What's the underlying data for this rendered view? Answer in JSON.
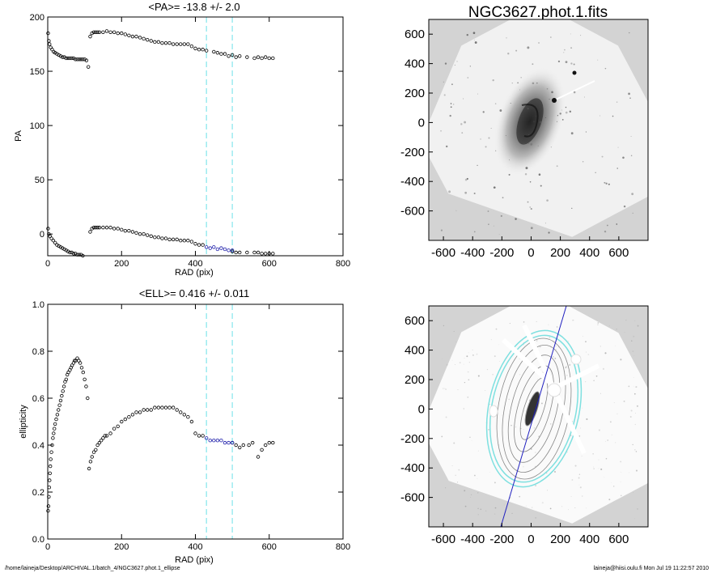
{
  "footer": {
    "left": "/home/laineja/Desktop/ARCHIVAL.1/batch_4/NGC3627.phot.1_ellipse",
    "right": "laineja@hiisi.oulu.fi  Mon Jul 19 11:22:57 2010"
  },
  "colors": {
    "points": "#000000",
    "fit_points": "#1a1aa8",
    "marker_lines": "#8ee8ee",
    "image_bg": "#d3d3d3",
    "contours": "#7ee0e0",
    "slit": "#2020c0"
  },
  "chart_data": [
    {
      "id": "pa",
      "type": "scatter",
      "title": "<PA>= -13.8 +/-   2.0",
      "xlabel": "RAD (pix)",
      "ylabel": "PA",
      "xlim": [
        0,
        800
      ],
      "ylim": [
        -20,
        200
      ],
      "xticks": [
        0,
        200,
        400,
        600,
        800
      ],
      "yticks": [
        0,
        50,
        100,
        150,
        200
      ],
      "vlines": [
        430,
        500
      ],
      "series": [
        {
          "values": [
            [
              1,
              185
            ],
            [
              3,
              178
            ],
            [
              5,
              175
            ],
            [
              8,
              172
            ],
            [
              12,
              170
            ],
            [
              16,
              168
            ],
            [
              20,
              167
            ],
            [
              25,
              166
            ],
            [
              30,
              165
            ],
            [
              35,
              164
            ],
            [
              40,
              163
            ],
            [
              45,
              163
            ],
            [
              50,
              162
            ],
            [
              55,
              162
            ],
            [
              60,
              162
            ],
            [
              65,
              162
            ],
            [
              70,
              162
            ],
            [
              75,
              161
            ],
            [
              80,
              161
            ],
            [
              85,
              161
            ],
            [
              90,
              161
            ],
            [
              95,
              161
            ],
            [
              100,
              161
            ],
            [
              105,
              160
            ],
            [
              110,
              154
            ],
            [
              115,
              182
            ],
            [
              120,
              185
            ],
            [
              125,
              186
            ],
            [
              130,
              186
            ],
            [
              135,
              186
            ],
            [
              140,
              186
            ],
            [
              150,
              186
            ],
            [
              160,
              187
            ],
            [
              170,
              186
            ],
            [
              180,
              186
            ],
            [
              190,
              185
            ],
            [
              200,
              185
            ],
            [
              210,
              184
            ],
            [
              220,
              183
            ],
            [
              230,
              182
            ],
            [
              240,
              182
            ],
            [
              250,
              181
            ],
            [
              260,
              180
            ],
            [
              270,
              179
            ],
            [
              280,
              178
            ],
            [
              290,
              177
            ],
            [
              300,
              177
            ],
            [
              310,
              176
            ],
            [
              320,
              176
            ],
            [
              330,
              176
            ],
            [
              340,
              175
            ],
            [
              350,
              175
            ],
            [
              360,
              175
            ],
            [
              370,
              175
            ],
            [
              380,
              175
            ],
            [
              390,
              173
            ],
            [
              400,
              171
            ],
            [
              410,
              170
            ],
            [
              420,
              170
            ],
            [
              430,
              169
            ],
            [
              450,
              168
            ],
            [
              460,
              167
            ],
            [
              470,
              166
            ],
            [
              480,
              166
            ],
            [
              490,
              164
            ],
            [
              500,
              165
            ],
            [
              510,
              163
            ],
            [
              520,
              164
            ],
            [
              540,
              163
            ],
            [
              560,
              162
            ],
            [
              570,
              163
            ],
            [
              580,
              162
            ],
            [
              590,
              163
            ],
            [
              600,
              162
            ],
            [
              610,
              162
            ],
            [
              1,
              5
            ],
            [
              3,
              0
            ],
            [
              6,
              -2
            ],
            [
              10,
              -4
            ],
            [
              15,
              -6
            ],
            [
              20,
              -8
            ],
            [
              25,
              -10
            ],
            [
              30,
              -11
            ],
            [
              35,
              -12
            ],
            [
              40,
              -13
            ],
            [
              45,
              -14
            ],
            [
              50,
              -15
            ],
            [
              55,
              -16
            ],
            [
              60,
              -17
            ],
            [
              65,
              -17
            ],
            [
              70,
              -18
            ],
            [
              75,
              -18
            ],
            [
              80,
              -19
            ],
            [
              85,
              -19
            ],
            [
              90,
              -19
            ],
            [
              95,
              -20
            ],
            [
              115,
              2
            ],
            [
              120,
              5
            ],
            [
              125,
              6
            ],
            [
              130,
              6
            ],
            [
              135,
              6
            ],
            [
              140,
              6
            ],
            [
              150,
              6
            ],
            [
              160,
              6
            ],
            [
              170,
              6
            ],
            [
              180,
              5
            ],
            [
              190,
              5
            ],
            [
              200,
              4
            ],
            [
              210,
              3
            ],
            [
              220,
              3
            ],
            [
              230,
              2
            ],
            [
              240,
              1
            ],
            [
              250,
              0
            ],
            [
              260,
              0
            ],
            [
              270,
              -1
            ],
            [
              280,
              -2
            ],
            [
              290,
              -3
            ],
            [
              300,
              -3
            ],
            [
              310,
              -4
            ],
            [
              320,
              -4
            ],
            [
              330,
              -5
            ],
            [
              340,
              -5
            ],
            [
              350,
              -5
            ],
            [
              360,
              -6
            ],
            [
              370,
              -6
            ],
            [
              380,
              -6
            ],
            [
              390,
              -7
            ],
            [
              400,
              -9
            ],
            [
              410,
              -10
            ],
            [
              420,
              -10
            ],
            [
              500,
              -16
            ],
            [
              510,
              -17
            ],
            [
              520,
              -17
            ],
            [
              540,
              -17
            ],
            [
              560,
              -17
            ],
            [
              570,
              -17
            ],
            [
              580,
              -18
            ],
            [
              590,
              -18
            ],
            [
              600,
              -18
            ],
            [
              610,
              -18
            ]
          ]
        },
        {
          "values": [
            [
              430,
              -12
            ],
            [
              440,
              -13
            ],
            [
              450,
              -12
            ],
            [
              460,
              -14
            ],
            [
              470,
              -13
            ],
            [
              480,
              -14
            ],
            [
              490,
              -15
            ],
            [
              500,
              -15
            ]
          ]
        }
      ]
    },
    {
      "id": "ell",
      "type": "scatter",
      "title": "<ELL>= 0.416 +/-  0.011",
      "xlabel": "RAD (pix)",
      "ylabel": "ellipticity",
      "xlim": [
        0,
        800
      ],
      "ylim": [
        0.0,
        1.0
      ],
      "xticks": [
        0,
        200,
        400,
        600,
        800
      ],
      "yticks": [
        0.0,
        0.2,
        0.4,
        0.6,
        0.8,
        1.0
      ],
      "vlines": [
        430,
        500
      ],
      "series": [
        {
          "values": [
            [
              1,
              0.12
            ],
            [
              2,
              0.14
            ],
            [
              3,
              0.18
            ],
            [
              4,
              0.22
            ],
            [
              5,
              0.25
            ],
            [
              6,
              0.28
            ],
            [
              7,
              0.31
            ],
            [
              8,
              0.34
            ],
            [
              10,
              0.37
            ],
            [
              12,
              0.4
            ],
            [
              14,
              0.43
            ],
            [
              16,
              0.45
            ],
            [
              18,
              0.47
            ],
            [
              20,
              0.49
            ],
            [
              23,
              0.51
            ],
            [
              26,
              0.53
            ],
            [
              29,
              0.55
            ],
            [
              32,
              0.57
            ],
            [
              35,
              0.59
            ],
            [
              38,
              0.61
            ],
            [
              41,
              0.63
            ],
            [
              44,
              0.65
            ],
            [
              47,
              0.67
            ],
            [
              50,
              0.68
            ],
            [
              53,
              0.7
            ],
            [
              56,
              0.71
            ],
            [
              60,
              0.72
            ],
            [
              63,
              0.73
            ],
            [
              66,
              0.74
            ],
            [
              70,
              0.75
            ],
            [
              73,
              0.76
            ],
            [
              76,
              0.76
            ],
            [
              80,
              0.77
            ],
            [
              84,
              0.76
            ],
            [
              88,
              0.75
            ],
            [
              92,
              0.73
            ],
            [
              96,
              0.71
            ],
            [
              100,
              0.68
            ],
            [
              104,
              0.65
            ],
            [
              108,
              0.6
            ],
            [
              112,
              0.3
            ],
            [
              116,
              0.33
            ],
            [
              120,
              0.35
            ],
            [
              125,
              0.37
            ],
            [
              130,
              0.38
            ],
            [
              135,
              0.4
            ],
            [
              140,
              0.41
            ],
            [
              145,
              0.42
            ],
            [
              150,
              0.43
            ],
            [
              155,
              0.44
            ],
            [
              160,
              0.44
            ],
            [
              170,
              0.45
            ],
            [
              180,
              0.47
            ],
            [
              190,
              0.48
            ],
            [
              200,
              0.5
            ],
            [
              210,
              0.51
            ],
            [
              220,
              0.52
            ],
            [
              230,
              0.53
            ],
            [
              240,
              0.54
            ],
            [
              250,
              0.54
            ],
            [
              260,
              0.55
            ],
            [
              270,
              0.55
            ],
            [
              280,
              0.55
            ],
            [
              290,
              0.56
            ],
            [
              300,
              0.56
            ],
            [
              310,
              0.56
            ],
            [
              320,
              0.56
            ],
            [
              330,
              0.56
            ],
            [
              340,
              0.56
            ],
            [
              350,
              0.55
            ],
            [
              360,
              0.54
            ],
            [
              370,
              0.53
            ],
            [
              380,
              0.52
            ],
            [
              390,
              0.5
            ],
            [
              400,
              0.45
            ],
            [
              410,
              0.44
            ],
            [
              420,
              0.44
            ],
            [
              500,
              0.41
            ],
            [
              510,
              0.4
            ],
            [
              520,
              0.39
            ],
            [
              530,
              0.4
            ],
            [
              545,
              0.4
            ],
            [
              555,
              0.41
            ],
            [
              570,
              0.35
            ],
            [
              580,
              0.38
            ],
            [
              590,
              0.4
            ],
            [
              600,
              0.41
            ],
            [
              610,
              0.41
            ]
          ]
        },
        {
          "values": [
            [
              430,
              0.43
            ],
            [
              440,
              0.42
            ],
            [
              450,
              0.42
            ],
            [
              460,
              0.42
            ],
            [
              470,
              0.42
            ],
            [
              480,
              0.41
            ],
            [
              490,
              0.41
            ],
            [
              500,
              0.41
            ]
          ]
        }
      ]
    }
  ],
  "images": [
    {
      "id": "top-image",
      "title": "NGC3627.phot.1.fits",
      "xlim": [
        -700,
        800
      ],
      "ylim": [
        -800,
        700
      ],
      "xticks": [
        -600,
        -400,
        -200,
        0,
        200,
        400,
        600
      ],
      "yticks": [
        600,
        400,
        200,
        0,
        -200,
        -400,
        -600
      ],
      "xtick_labels": [
        "-600",
        "-400",
        "-200",
        "0",
        "200",
        "400",
        "600"
      ],
      "ytick_labels": [
        "600",
        "400",
        "200",
        "0",
        "-200",
        "-400",
        "-600"
      ]
    },
    {
      "id": "bottom-image",
      "title": "",
      "xlim": [
        -700,
        800
      ],
      "ylim": [
        -800,
        700
      ],
      "xticks": [
        -600,
        -400,
        -200,
        0,
        200,
        400,
        600
      ],
      "yticks": [
        600,
        400,
        200,
        0,
        -200,
        -400,
        -600
      ],
      "xtick_labels": [
        "-600",
        "-400",
        "-200",
        "0",
        "200",
        "400",
        "600"
      ],
      "ytick_labels": [
        "600",
        "400",
        "200",
        "0",
        "-200",
        "-400",
        "-600"
      ]
    }
  ]
}
